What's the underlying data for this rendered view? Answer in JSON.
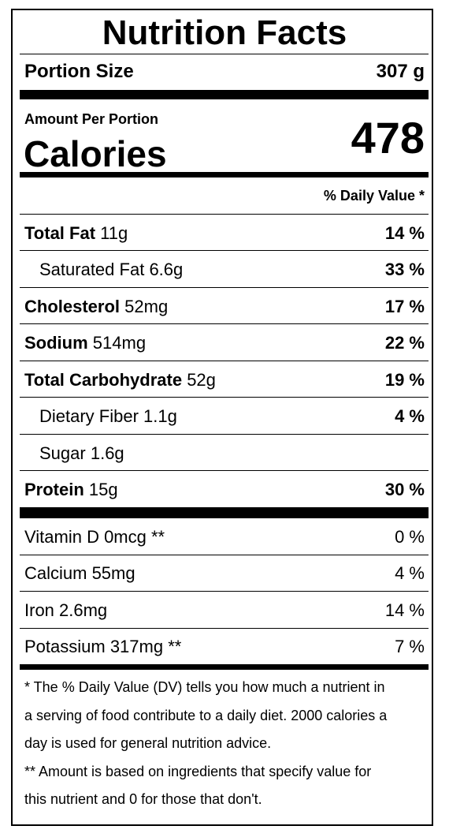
{
  "label": {
    "title": "Nutrition Facts",
    "portion_size_label": "Portion Size",
    "portion_size_value": "307 g",
    "amount_per_portion": "Amount Per Portion",
    "calories_label": "Calories",
    "calories_value": "478",
    "daily_value_header": "% Daily Value *",
    "nutrients": [
      {
        "name": "Total Fat",
        "amount": "11g",
        "dv": "14 %"
      },
      {
        "name": "Saturated Fat",
        "amount": "6.6g",
        "dv": "33 %"
      },
      {
        "name": "Cholesterol",
        "amount": "52mg",
        "dv": "17 %"
      },
      {
        "name": "Sodium",
        "amount": "514mg",
        "dv": "22 %"
      },
      {
        "name": "Total Carbohydrate",
        "amount": "52g",
        "dv": "19 %"
      },
      {
        "name": "Dietary Fiber",
        "amount": "1.1g",
        "dv": "4 %"
      },
      {
        "name": "Sugar",
        "amount": "1.6g",
        "dv": ""
      },
      {
        "name": "Protein",
        "amount": "15g",
        "dv": "30 %"
      }
    ],
    "vitamins": [
      {
        "text": "Vitamin D 0mcg **",
        "dv": "0 %"
      },
      {
        "text": "Calcium 55mg",
        "dv": "4 %"
      },
      {
        "text": "Iron 2.6mg",
        "dv": "14 %"
      },
      {
        "text": "Potassium 317mg **",
        "dv": "7 %"
      }
    ],
    "footnotes": [
      "* The % Daily Value (DV) tells you how much a nutrient in",
      "a serving of food contribute to a daily diet. 2000 calories a",
      "day is used for general nutrition advice.",
      "** Amount is based on ingredients that specify value for",
      "this nutrient and 0 for those that don't."
    ]
  }
}
